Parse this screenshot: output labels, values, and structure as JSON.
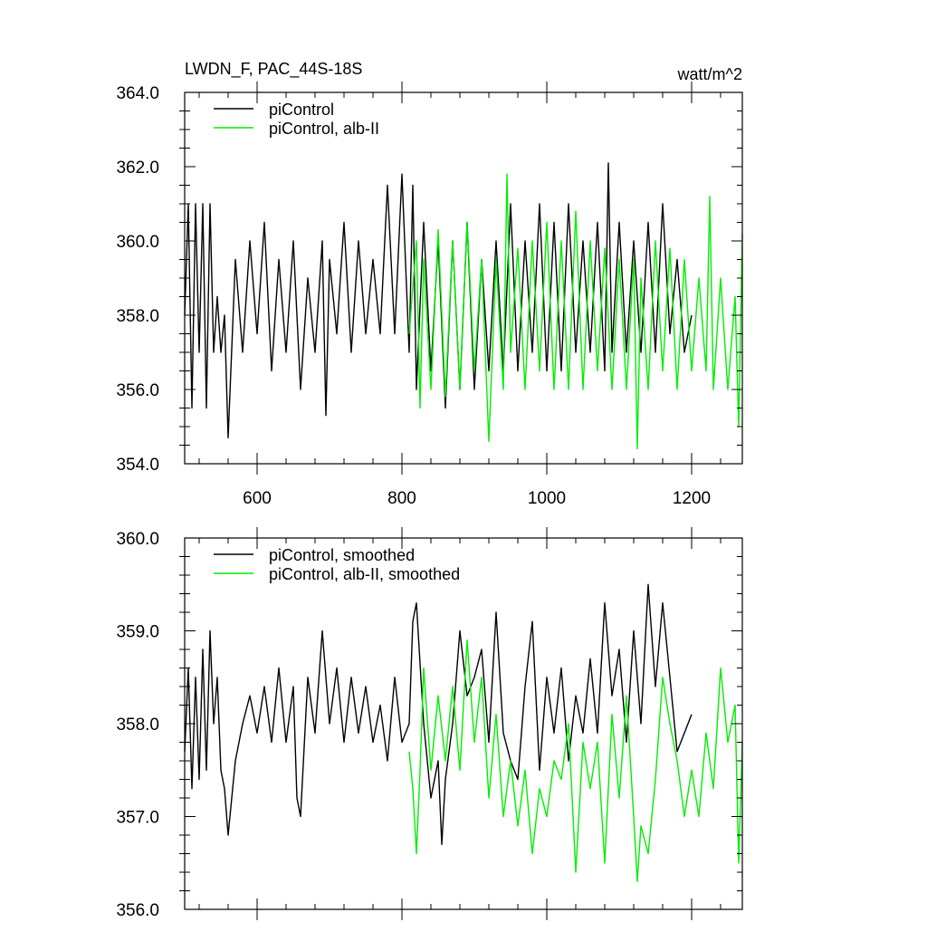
{
  "chart_data": [
    {
      "type": "line",
      "title": "LWDN_F, PAC_44S-18S",
      "units": "watt/m^2",
      "xlim": [
        500,
        1270
      ],
      "ylim": [
        354.0,
        364.0
      ],
      "x_ticks": [
        600,
        800,
        1000,
        1200
      ],
      "x_tick_labels": [
        "600",
        "800",
        "1000",
        "1200"
      ],
      "y_ticks": [
        354.0,
        356.0,
        358.0,
        360.0,
        362.0,
        364.0
      ],
      "y_tick_labels": [
        "354.0",
        "356.0",
        "358.0",
        "360.0",
        "362.0",
        "364.0"
      ],
      "legend_position": "top-left",
      "grid": false,
      "series": [
        {
          "name": "piControl",
          "color": "#000000",
          "x_start": 500,
          "x_end": 1200,
          "anchor_x": [
            500,
            505,
            510,
            515,
            520,
            525,
            530,
            535,
            540,
            545,
            550,
            555,
            560,
            570,
            580,
            590,
            600,
            610,
            620,
            630,
            640,
            650,
            660,
            670,
            680,
            690,
            695,
            700,
            710,
            720,
            730,
            740,
            750,
            760,
            770,
            780,
            790,
            800,
            810,
            815,
            820,
            830,
            840,
            850,
            860,
            870,
            880,
            890,
            900,
            910,
            920,
            930,
            940,
            950,
            960,
            970,
            980,
            990,
            1000,
            1010,
            1020,
            1030,
            1040,
            1050,
            1060,
            1070,
            1080,
            1085,
            1090,
            1100,
            1110,
            1120,
            1130,
            1140,
            1150,
            1160,
            1170,
            1180,
            1190,
            1200
          ],
          "anchor_y": [
            358.0,
            361.0,
            355.5,
            361.0,
            357.0,
            361.0,
            355.5,
            361.0,
            357.0,
            358.5,
            357.0,
            358.0,
            354.7,
            359.5,
            357.0,
            360.0,
            357.5,
            360.5,
            356.5,
            359.5,
            357.0,
            360.0,
            356.0,
            359.0,
            357.0,
            360.0,
            355.3,
            359.5,
            357.5,
            360.5,
            357.0,
            360.0,
            357.5,
            359.5,
            357.5,
            361.5,
            357.5,
            361.8,
            357.0,
            361.5,
            356.0,
            360.5,
            356.5,
            360.0,
            355.5,
            360.0,
            356.0,
            360.5,
            356.0,
            359.5,
            356.5,
            360.0,
            356.5,
            361.0,
            356.5,
            360.0,
            357.0,
            361.0,
            356.5,
            360.5,
            356.5,
            361.0,
            357.0,
            360.0,
            357.0,
            360.5,
            356.5,
            362.1,
            357.0,
            360.5,
            357.0,
            360.0,
            357.0,
            360.5,
            357.0,
            361.0,
            357.5,
            359.5,
            357.0,
            358.0
          ]
        },
        {
          "name": "piControl, alb-II",
          "color": "#00ee00",
          "x_start": 810,
          "x_end": 1270,
          "anchor_x": [
            810,
            820,
            825,
            830,
            840,
            850,
            860,
            870,
            880,
            890,
            900,
            910,
            920,
            930,
            940,
            945,
            950,
            960,
            970,
            980,
            990,
            1000,
            1010,
            1020,
            1030,
            1040,
            1050,
            1060,
            1070,
            1080,
            1090,
            1100,
            1110,
            1120,
            1125,
            1130,
            1140,
            1150,
            1160,
            1170,
            1180,
            1190,
            1200,
            1210,
            1220,
            1225,
            1230,
            1240,
            1250,
            1260,
            1265,
            1270
          ],
          "anchor_y": [
            357.5,
            360.0,
            355.5,
            359.5,
            356.0,
            360.3,
            355.8,
            360.0,
            356.0,
            360.5,
            356.5,
            359.5,
            354.6,
            359.5,
            356.0,
            361.8,
            357.0,
            359.8,
            356.0,
            360.0,
            356.5,
            360.5,
            356.0,
            360.0,
            356.0,
            360.8,
            356.0,
            360.0,
            356.5,
            359.8,
            356.0,
            359.5,
            356.0,
            359.5,
            354.4,
            359.0,
            356.0,
            360.0,
            356.5,
            359.8,
            356.0,
            359.5,
            356.5,
            359.0,
            356.5,
            361.2,
            356.0,
            359.0,
            356.0,
            358.5,
            355.0,
            360.2
          ]
        }
      ]
    },
    {
      "type": "line",
      "xlim": [
        500,
        1270
      ],
      "ylim": [
        356.0,
        360.0
      ],
      "x_ticks": [
        600,
        800,
        1000,
        1200
      ],
      "y_ticks": [
        356.0,
        357.0,
        358.0,
        359.0,
        360.0
      ],
      "y_tick_labels": [
        "356.0",
        "357.0",
        "358.0",
        "359.0",
        "360.0"
      ],
      "legend_position": "top-left",
      "grid": false,
      "series": [
        {
          "name": "piControl, smoothed",
          "color": "#000000",
          "x_start": 500,
          "x_end": 1200,
          "anchor_x": [
            500,
            505,
            510,
            515,
            520,
            525,
            530,
            535,
            540,
            545,
            550,
            555,
            560,
            570,
            580,
            590,
            600,
            610,
            620,
            630,
            640,
            650,
            655,
            660,
            670,
            680,
            690,
            700,
            710,
            720,
            730,
            740,
            750,
            760,
            770,
            780,
            790,
            800,
            810,
            815,
            820,
            830,
            840,
            850,
            855,
            860,
            870,
            880,
            890,
            900,
            910,
            920,
            930,
            940,
            950,
            960,
            970,
            980,
            990,
            1000,
            1010,
            1020,
            1030,
            1040,
            1050,
            1060,
            1070,
            1080,
            1090,
            1100,
            1110,
            1120,
            1130,
            1140,
            1150,
            1160,
            1170,
            1180,
            1190,
            1200
          ],
          "anchor_y": [
            357.7,
            358.6,
            357.3,
            358.5,
            357.4,
            358.8,
            357.5,
            359.0,
            358.0,
            358.5,
            357.5,
            357.3,
            356.8,
            357.6,
            358.0,
            358.3,
            357.9,
            358.4,
            357.8,
            358.6,
            357.8,
            358.4,
            357.2,
            357.0,
            358.5,
            357.9,
            359.0,
            358.0,
            358.6,
            357.8,
            358.5,
            357.9,
            358.4,
            357.8,
            358.2,
            357.6,
            358.5,
            357.8,
            358.0,
            359.1,
            359.3,
            358.0,
            357.2,
            357.6,
            356.7,
            357.4,
            358.0,
            359.0,
            358.3,
            358.5,
            358.8,
            357.8,
            359.2,
            357.9,
            357.6,
            357.4,
            358.4,
            359.1,
            357.5,
            358.5,
            357.9,
            358.6,
            357.6,
            358.3,
            357.9,
            358.7,
            357.9,
            359.3,
            358.3,
            358.8,
            357.8,
            359.0,
            358.0,
            359.5,
            358.4,
            359.3,
            358.5,
            357.7,
            357.9,
            358.1
          ]
        },
        {
          "name": "piControl, alb-II, smoothed",
          "color": "#00ee00",
          "x_start": 810,
          "x_end": 1270,
          "anchor_x": [
            810,
            815,
            820,
            825,
            830,
            840,
            850,
            860,
            870,
            880,
            890,
            900,
            910,
            920,
            930,
            940,
            950,
            960,
            970,
            980,
            990,
            1000,
            1010,
            1020,
            1030,
            1040,
            1050,
            1060,
            1070,
            1080,
            1090,
            1100,
            1110,
            1120,
            1125,
            1130,
            1140,
            1150,
            1160,
            1170,
            1180,
            1190,
            1200,
            1210,
            1220,
            1230,
            1240,
            1250,
            1260,
            1265,
            1270
          ],
          "anchor_y": [
            357.7,
            357.3,
            356.6,
            357.5,
            358.6,
            357.5,
            358.3,
            357.6,
            358.4,
            357.5,
            358.9,
            357.8,
            358.5,
            357.2,
            358.1,
            357.0,
            357.6,
            356.9,
            357.5,
            356.6,
            357.3,
            357.0,
            357.6,
            357.4,
            358.0,
            356.4,
            357.8,
            357.3,
            357.8,
            356.5,
            358.1,
            357.2,
            358.3,
            357.0,
            356.3,
            356.9,
            356.6,
            357.4,
            358.5,
            358.0,
            357.6,
            357.0,
            357.5,
            357.0,
            357.9,
            357.3,
            358.6,
            357.8,
            358.2,
            356.5,
            357.8
          ]
        }
      ]
    }
  ]
}
